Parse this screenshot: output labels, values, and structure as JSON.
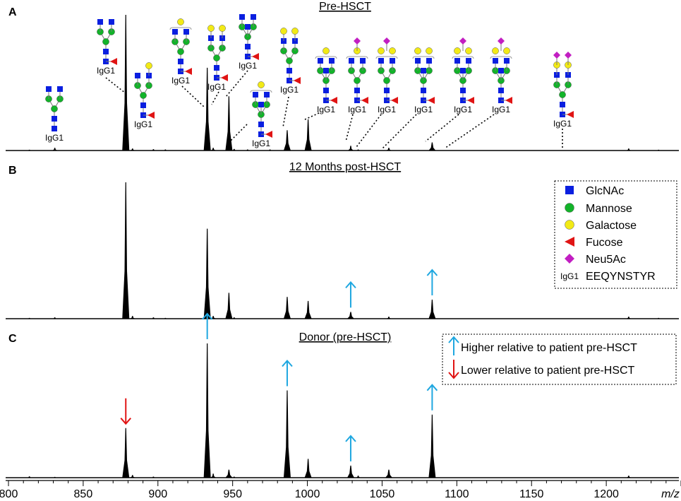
{
  "chart_data": {
    "type": "bar",
    "xlabel": "m/z",
    "xlim": [
      800,
      1250
    ],
    "x_ticks": [
      800,
      850,
      900,
      950,
      1000,
      1050,
      1100,
      1150,
      1200
    ],
    "colors": {
      "glcnac": "#0a1fe0",
      "mannose": "#12b329",
      "galactose": "#f2ea16",
      "fucose": "#e01414",
      "neu5ac": "#c21ec2",
      "arrow_up": "#1fa7e0",
      "arrow_down": "#e01414",
      "peaks": "#000000"
    },
    "panels": [
      {
        "letter": "A",
        "title": "Pre-HSCT",
        "ylim": [
          0,
          100
        ],
        "peaks": [
          {
            "mz": 814,
            "intensity": 0.6
          },
          {
            "mz": 831,
            "intensity": 2
          },
          {
            "mz": 878.5,
            "intensity": 100
          },
          {
            "mz": 883,
            "intensity": 1.5
          },
          {
            "mz": 897,
            "intensity": 1
          },
          {
            "mz": 905,
            "intensity": 0.8
          },
          {
            "mz": 933,
            "intensity": 61
          },
          {
            "mz": 937,
            "intensity": 2
          },
          {
            "mz": 947.5,
            "intensity": 40
          },
          {
            "mz": 951,
            "intensity": 1.2
          },
          {
            "mz": 960,
            "intensity": 0.8
          },
          {
            "mz": 975,
            "intensity": 0.8
          },
          {
            "mz": 986.5,
            "intensity": 15
          },
          {
            "mz": 1000.5,
            "intensity": 23
          },
          {
            "mz": 1029,
            "intensity": 3.5
          },
          {
            "mz": 1034,
            "intensity": 0.8
          },
          {
            "mz": 1054.5,
            "intensity": 2
          },
          {
            "mz": 1083.5,
            "intensity": 6
          },
          {
            "mz": 1215,
            "intensity": 1.5
          },
          {
            "mz": 1235,
            "intensity": 0.6
          }
        ],
        "glycan_labels": [
          {
            "mz": 831,
            "peptide": "IgG1"
          },
          {
            "mz": 878.5,
            "peptide": "IgG1"
          },
          {
            "mz": 883,
            "peptide": "IgG1"
          },
          {
            "mz": 933,
            "peptide": "IgG1"
          },
          {
            "mz": 937,
            "peptide": "IgG1"
          },
          {
            "mz": 947.5,
            "peptide": "IgG1"
          },
          {
            "mz": 960,
            "peptide": "IgG1"
          },
          {
            "mz": 986.5,
            "peptide": "IgG1"
          },
          {
            "mz": 1000.5,
            "peptide": "IgG1"
          },
          {
            "mz": 1029,
            "peptide": "IgG1"
          },
          {
            "mz": 1034,
            "peptide": "IgG1"
          },
          {
            "mz": 1054.5,
            "peptide": "IgG1"
          },
          {
            "mz": 1083.5,
            "peptide": "IgG1"
          },
          {
            "mz": 1110,
            "peptide": "IgG1"
          },
          {
            "mz": 1180,
            "peptide": "IgG1"
          }
        ]
      },
      {
        "letter": "B",
        "title": "12 Months post-HSCT",
        "ylim": [
          0,
          100
        ],
        "peaks": [
          {
            "mz": 814,
            "intensity": 0.6
          },
          {
            "mz": 831,
            "intensity": 1
          },
          {
            "mz": 878.5,
            "intensity": 100
          },
          {
            "mz": 883,
            "intensity": 2
          },
          {
            "mz": 897,
            "intensity": 1
          },
          {
            "mz": 905,
            "intensity": 0.6
          },
          {
            "mz": 933,
            "intensity": 66
          },
          {
            "mz": 937,
            "intensity": 2
          },
          {
            "mz": 947.5,
            "intensity": 19
          },
          {
            "mz": 951,
            "intensity": 1
          },
          {
            "mz": 986.5,
            "intensity": 16
          },
          {
            "mz": 1000.5,
            "intensity": 13
          },
          {
            "mz": 1029,
            "intensity": 5
          },
          {
            "mz": 1054.5,
            "intensity": 1.5
          },
          {
            "mz": 1083.5,
            "intensity": 14
          },
          {
            "mz": 1215,
            "intensity": 1.5
          },
          {
            "mz": 1235,
            "intensity": 0.6
          }
        ],
        "arrows": [
          {
            "mz": 1029,
            "direction": "up"
          },
          {
            "mz": 1083.5,
            "direction": "up"
          }
        ]
      },
      {
        "letter": "C",
        "title": "Donor (pre-HSCT)",
        "ylim": [
          0,
          100
        ],
        "peaks": [
          {
            "mz": 814,
            "intensity": 1
          },
          {
            "mz": 831,
            "intensity": 0.6
          },
          {
            "mz": 878.5,
            "intensity": 37
          },
          {
            "mz": 883,
            "intensity": 2
          },
          {
            "mz": 897,
            "intensity": 0.8
          },
          {
            "mz": 933,
            "intensity": 100
          },
          {
            "mz": 937,
            "intensity": 3
          },
          {
            "mz": 947.5,
            "intensity": 6
          },
          {
            "mz": 951,
            "intensity": 0.8
          },
          {
            "mz": 986.5,
            "intensity": 65
          },
          {
            "mz": 1000.5,
            "intensity": 14
          },
          {
            "mz": 1029,
            "intensity": 9
          },
          {
            "mz": 1034,
            "intensity": 1.5
          },
          {
            "mz": 1054.5,
            "intensity": 6
          },
          {
            "mz": 1083.5,
            "intensity": 47
          },
          {
            "mz": 1215,
            "intensity": 1.5
          }
        ],
        "arrows": [
          {
            "mz": 878.5,
            "direction": "down"
          },
          {
            "mz": 933,
            "direction": "up"
          },
          {
            "mz": 986.5,
            "direction": "up"
          },
          {
            "mz": 1029,
            "direction": "up"
          },
          {
            "mz": 1083.5,
            "direction": "up"
          }
        ]
      }
    ],
    "legend_monosaccharides": [
      {
        "symbol": "glcnac-square",
        "label": "GlcNAc"
      },
      {
        "symbol": "mannose-circle",
        "label": "Mannose"
      },
      {
        "symbol": "galactose-circle",
        "label": "Galactose"
      },
      {
        "symbol": "fucose-triangle",
        "label": "Fucose"
      },
      {
        "symbol": "neu5ac-diamond",
        "label": "Neu5Ac"
      },
      {
        "symbol": "IgG1",
        "label": "EEQYNSTYR"
      }
    ],
    "legend_arrows": [
      {
        "direction": "up",
        "label": "Higher relative to patient pre-HSCT"
      },
      {
        "direction": "down",
        "label": "Lower relative to patient pre-HSCT"
      }
    ]
  }
}
